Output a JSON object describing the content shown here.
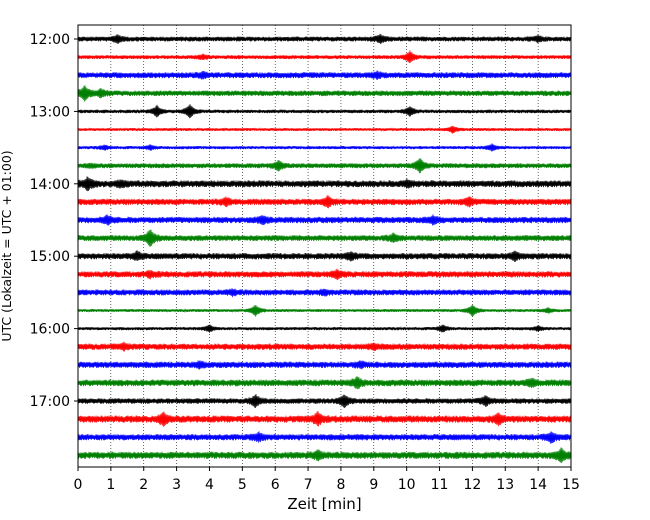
{
  "chart_data": {
    "type": "line",
    "title": "",
    "xlabel": "Zeit  [min]",
    "ylabel": "UTC (Lokalzeit = UTC + 01:00)",
    "xlim": [
      0,
      15
    ],
    "x_ticks": [
      0,
      1,
      2,
      3,
      4,
      5,
      6,
      7,
      8,
      9,
      10,
      11,
      12,
      13,
      14,
      15
    ],
    "x_tick_labels": [
      "0",
      "1",
      "2",
      "3",
      "4",
      "5",
      "6",
      "7",
      "8",
      "9",
      "10",
      "11",
      "12",
      "13",
      "14",
      "15"
    ],
    "y_tick_labels": [
      "12:00",
      "13:00",
      "14:00",
      "15:00",
      "16:00",
      "17:00"
    ],
    "grid": "vertical dotted",
    "trace_interval_min": 15,
    "color_cycle": [
      "#000000",
      "#ff0000",
      "#0000ff",
      "#008000"
    ],
    "series": [
      {
        "start": "12:00",
        "color": "#000000",
        "amplitude": 2.5,
        "events": [
          [
            1.2,
            3
          ],
          [
            9.2,
            3
          ],
          [
            14.0,
            2
          ]
        ]
      },
      {
        "start": "12:15",
        "color": "#ff0000",
        "amplitude": 2.0,
        "events": [
          [
            3.8,
            2
          ],
          [
            10.1,
            5
          ]
        ]
      },
      {
        "start": "12:30",
        "color": "#0000ff",
        "amplitude": 3.0,
        "events": [
          [
            3.8,
            2
          ],
          [
            9.1,
            2
          ]
        ]
      },
      {
        "start": "12:45",
        "color": "#008000",
        "amplitude": 2.8,
        "events": [
          [
            0.2,
            6
          ],
          [
            0.7,
            3
          ]
        ]
      },
      {
        "start": "13:00",
        "color": "#000000",
        "amplitude": 1.8,
        "events": [
          [
            2.4,
            5
          ],
          [
            3.4,
            6
          ],
          [
            10.1,
            4
          ]
        ]
      },
      {
        "start": "13:15",
        "color": "#ff0000",
        "amplitude": 1.5,
        "events": [
          [
            11.4,
            3
          ]
        ]
      },
      {
        "start": "13:30",
        "color": "#0000ff",
        "amplitude": 1.6,
        "events": [
          [
            0.8,
            2
          ],
          [
            2.2,
            2
          ],
          [
            12.6,
            3
          ]
        ]
      },
      {
        "start": "13:45",
        "color": "#008000",
        "amplitude": 2.5,
        "events": [
          [
            0.4,
            1
          ],
          [
            6.1,
            4
          ],
          [
            10.4,
            6
          ]
        ]
      },
      {
        "start": "14:00",
        "color": "#000000",
        "amplitude": 3.5,
        "events": [
          [
            0.3,
            5
          ],
          [
            1.3,
            2
          ],
          [
            10.0,
            2
          ]
        ]
      },
      {
        "start": "14:15",
        "color": "#ff0000",
        "amplitude": 3.2,
        "events": [
          [
            4.5,
            3
          ],
          [
            7.6,
            4
          ],
          [
            11.9,
            3
          ]
        ]
      },
      {
        "start": "14:30",
        "color": "#0000ff",
        "amplitude": 3.2,
        "events": [
          [
            0.9,
            3
          ],
          [
            5.6,
            3
          ],
          [
            10.8,
            3
          ]
        ]
      },
      {
        "start": "14:45",
        "color": "#008000",
        "amplitude": 3.0,
        "events": [
          [
            2.2,
            7
          ],
          [
            9.6,
            3
          ]
        ]
      },
      {
        "start": "15:00",
        "color": "#000000",
        "amplitude": 3.2,
        "events": [
          [
            1.8,
            3
          ],
          [
            8.3,
            3
          ],
          [
            13.3,
            3
          ]
        ]
      },
      {
        "start": "15:15",
        "color": "#ff0000",
        "amplitude": 3.2,
        "events": [
          [
            2.2,
            2
          ],
          [
            7.9,
            3
          ]
        ]
      },
      {
        "start": "15:30",
        "color": "#0000ff",
        "amplitude": 3.0,
        "events": [
          [
            4.7,
            2
          ],
          [
            7.5,
            2
          ]
        ]
      },
      {
        "start": "15:45",
        "color": "#008000",
        "amplitude": 1.5,
        "events": [
          [
            5.4,
            5
          ],
          [
            12.0,
            5
          ],
          [
            14.3,
            2
          ]
        ]
      },
      {
        "start": "16:00",
        "color": "#000000",
        "amplitude": 1.6,
        "events": [
          [
            4.0,
            3
          ],
          [
            11.1,
            3
          ],
          [
            14.0,
            2
          ]
        ]
      },
      {
        "start": "16:15",
        "color": "#ff0000",
        "amplitude": 3.2,
        "events": [
          [
            1.4,
            2
          ],
          [
            9.0,
            2
          ]
        ]
      },
      {
        "start": "16:30",
        "color": "#0000ff",
        "amplitude": 3.2,
        "events": [
          [
            3.7,
            2
          ],
          [
            8.6,
            2
          ]
        ]
      },
      {
        "start": "16:45",
        "color": "#008000",
        "amplitude": 3.4,
        "events": [
          [
            8.5,
            4
          ],
          [
            13.8,
            3
          ]
        ]
      },
      {
        "start": "17:00",
        "color": "#000000",
        "amplitude": 2.8,
        "events": [
          [
            5.4,
            5
          ],
          [
            8.1,
            5
          ],
          [
            12.4,
            4
          ]
        ]
      },
      {
        "start": "17:15",
        "color": "#ff0000",
        "amplitude": 3.6,
        "events": [
          [
            2.6,
            5
          ],
          [
            7.3,
            5
          ],
          [
            12.8,
            4
          ]
        ]
      },
      {
        "start": "17:30",
        "color": "#0000ff",
        "amplitude": 3.2,
        "events": [
          [
            5.5,
            3
          ],
          [
            14.4,
            4
          ]
        ]
      },
      {
        "start": "17:45",
        "color": "#008000",
        "amplitude": 3.6,
        "events": [
          [
            7.3,
            3
          ],
          [
            14.7,
            5
          ]
        ]
      }
    ]
  }
}
